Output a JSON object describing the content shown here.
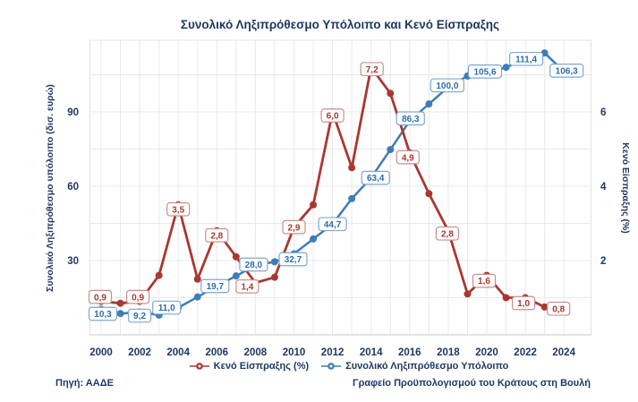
{
  "title": "Συνολικό Ληξιπρόθεσμο Υπόλοιπο και Κενό Είσπραξης",
  "source": "Πηγή: ΑΑΔΕ",
  "credit": "Γραφείο Προϋπολογισμού του Κράτους στη Βουλή",
  "legend": {
    "collection_gap": "Κενό Είσπραξης (%)",
    "overdue_balance": "Συνολικό Ληξιπρόθεσμο Υπόλοιπο"
  },
  "colors": {
    "navy": "#1F3864",
    "blue_line": "#3E7CB9",
    "blue_label_border": "#7FA8CE",
    "blue_label_text": "#2E6DA8",
    "red_line": "#A93830",
    "red_label_border": "#C98F8A",
    "red_label_text": "#A93830",
    "grid": "#E9E9EC",
    "axis_line": "#C9C9CD",
    "plot_border": "#E3E3E6"
  },
  "chart_data": {
    "type": "line",
    "title": "Συνολικό Ληξιπρόθεσμο Υπόλοιπο και Κενό Είσπραξης",
    "x": [
      2000,
      2001,
      2002,
      2003,
      2004,
      2005,
      2006,
      2007,
      2008,
      2009,
      2010,
      2011,
      2012,
      2013,
      2014,
      2015,
      2016,
      2017,
      2018,
      2019,
      2020,
      2021,
      2022,
      2023,
      2024
    ],
    "x_tick_labels": [
      "2000",
      "2002",
      "2004",
      "2006",
      "2008",
      "2010",
      "2012",
      "2014",
      "2016",
      "2018",
      "2020",
      "2022",
      "2024"
    ],
    "left_axis": {
      "label": "Συνολικό Ληξιπρόθεσμο υπόλοιπο (δισ. ευρώ)",
      "ticks": [
        30,
        60,
        90
      ],
      "range": [
        0,
        119
      ],
      "grid_step": 15
    },
    "right_axis": {
      "label": "Κενό Είσπραξης (%)",
      "ticks": [
        2,
        4,
        6
      ],
      "range": [
        0,
        7.93
      ]
    },
    "grid": "on",
    "legend_position": "bottom",
    "series": [
      {
        "name": "Συνολικό Ληξιπρόθεσμο Υπόλοιπο",
        "axis": "left",
        "color_key": "blue",
        "values": [
          10.3,
          8.6,
          9.2,
          8.0,
          11.0,
          15.3,
          19.7,
          23.8,
          28.0,
          29.5,
          32.7,
          38.7,
          44.7,
          55.0,
          63.4,
          74.8,
          86.3,
          93.2,
          100.0,
          104.5,
          105.6,
          108.0,
          111.4,
          113.8,
          106.3
        ],
        "labels": [
          {
            "year": 2000,
            "text": "10,3",
            "ox": 2,
            "oy": 5
          },
          {
            "year": 2002,
            "text": "9,2",
            "ox": 0,
            "oy": 4
          },
          {
            "year": 2004,
            "text": "11,0",
            "ox": -13,
            "oy": 0
          },
          {
            "year": 2006,
            "text": "19,7",
            "ox": -2,
            "oy": 0
          },
          {
            "year": 2008,
            "text": "28,0",
            "ox": -2,
            "oy": -1
          },
          {
            "year": 2010,
            "text": "32,7",
            "ox": -1,
            "oy": 6
          },
          {
            "year": 2012,
            "text": "44,7",
            "ox": 0,
            "oy": 0
          },
          {
            "year": 2014,
            "text": "63,4",
            "ox": 5,
            "oy": 0
          },
          {
            "year": 2016,
            "text": "86,3",
            "ox": 1,
            "oy": -3
          },
          {
            "year": 2018,
            "text": "100,0",
            "ox": -1,
            "oy": -2
          },
          {
            "year": 2020,
            "text": "105,6",
            "ox": -2,
            "oy": -2
          },
          {
            "year": 2022,
            "text": "111,4",
            "ox": 1,
            "oy": 0
          },
          {
            "year": 2024,
            "text": "106,3",
            "ox": 3,
            "oy": -1
          }
        ]
      },
      {
        "name": "Κενό Είσπραξης (%)",
        "axis": "right",
        "color_key": "red",
        "values": [
          0.9,
          0.85,
          0.9,
          1.6,
          3.5,
          1.5,
          2.8,
          2.1,
          1.4,
          1.55,
          2.9,
          3.5,
          6.0,
          4.5,
          7.2,
          6.5,
          4.9,
          3.8,
          2.8,
          1.1,
          1.6,
          1.0,
          1.0,
          0.75,
          0.8
        ],
        "labels": [
          {
            "year": 2000,
            "text": "0,9",
            "ox": -1,
            "oy": -5
          },
          {
            "year": 2002,
            "text": "0,9",
            "ox": -2,
            "oy": -5
          },
          {
            "year": 2004,
            "text": "3,5",
            "ox": 0,
            "oy": 5
          },
          {
            "year": 2006,
            "text": "2,8",
            "ox": 0,
            "oy": 5
          },
          {
            "year": 2008,
            "text": "1,4",
            "ox": -9,
            "oy": 4
          },
          {
            "year": 2010,
            "text": "2,9",
            "ox": 0,
            "oy": 0
          },
          {
            "year": 2012,
            "text": "6,0",
            "ox": 0,
            "oy": 4
          },
          {
            "year": 2014,
            "text": "7,2",
            "ox": 1,
            "oy": 2
          },
          {
            "year": 2016,
            "text": "4,9",
            "ox": -2,
            "oy": 5
          },
          {
            "year": 2018,
            "text": "2,8",
            "ox": -1,
            "oy": 3
          },
          {
            "year": 2020,
            "text": "1,6",
            "ox": -3,
            "oy": 6
          },
          {
            "year": 2022,
            "text": "1,0",
            "ox": -2,
            "oy": 6
          },
          {
            "year": 2024,
            "text": "0,8",
            "ox": -6,
            "oy": 4
          }
        ]
      }
    ]
  }
}
